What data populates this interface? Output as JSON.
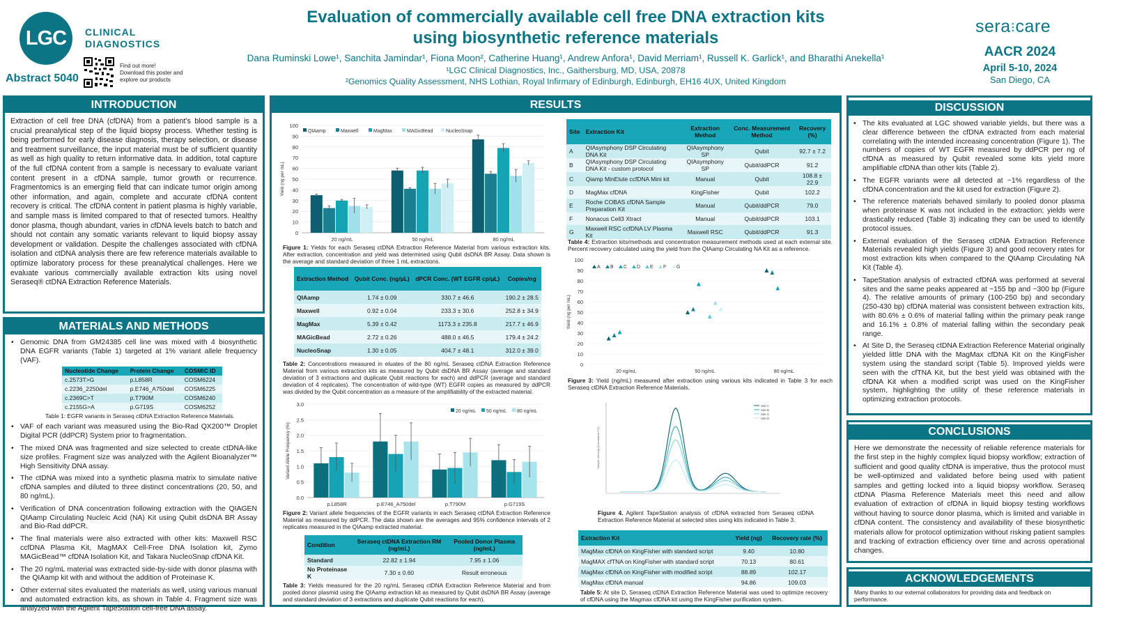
{
  "header": {
    "logo_text": "LGC",
    "org_line1": "CLINICAL",
    "org_line2": "DIAGNOSTICS",
    "abstract": "Abstract 5040",
    "qr_text": [
      "Find out more!",
      "Download this poster and",
      "explore our products"
    ],
    "title1": "Evaluation of commercially available cell free DNA extraction kits",
    "title2": "using biosynthetic reference materials",
    "authors": "Dana Ruminski Lowe¹, Sanchita Jamindar¹, Fiona Moon², Catherine Huang¹, Andrew Anfora¹, David Merriam¹, Russell K. Garlick¹, and Bharathi Anekella¹",
    "aff1": "¹LGC Clinical Diagnostics, Inc., Gaithersburg, MD, USA, 20878",
    "aff2": "²Genomics Quality Assessment, NHS Lothian, Royal Infirmary of Edinburgh, Edinburgh, EH16 4UX, United Kingdom",
    "brand_left": "sera",
    "brand_right": "care",
    "conf": "AACR 2024",
    "dates": "April 5-10, 2024",
    "city": "San Diego, CA"
  },
  "intro": {
    "title": "INTRODUCTION",
    "text": "Extraction of cell free DNA (cfDNA) from a patient’s blood sample is a crucial preanalytical step of the liquid biopsy process. Whether testing is being performed for early disease diagnosis, therapy selection, or disease and treatment surveillance, the input material must be of sufficient quantity as well as high quality to return informative data. In addition, total capture of the full cfDNA content from a sample is necessary to evaluate variant content present in a cfDNA sample, tumor growth or recurrence. Fragmentomics is an emerging field that can indicate tumor origin among other information, and again, complete and accurate cfDNA content recovery is critical. The cfDNA content in patient plasma is highly variable, and sample mass is limited compared to that of resected tumors. Healthy donor plasma, though abundant, varies in cfDNA levels batch to batch and should not contain any somatic variants relevant to liquid biopsy assay development or validation. Despite the challenges associated with cfDNA isolation and ctDNA analysis there are few reference materials available to optimize laboratory process for these preanalytical challenges. Here we evaluate various commercially available extraction kits using novel Seraseq® ctDNA Extraction Reference Materials."
  },
  "methods": {
    "title": "MATERIALS AND METHODS",
    "b1": "Genomic DNA from GM24385 cell line was mixed with 4 biosynthetic DNA EGFR variants (Table 1) targeted at 1% variant allele frequency (VAF).",
    "t1_headers": [
      "Nucleotide Change",
      "Protein Change",
      "COSMIC ID"
    ],
    "t1_rows": [
      [
        "c.2573T>G",
        "p.L858R",
        "COSM6224"
      ],
      [
        "c.2236_2250del",
        "p.E746_A750del",
        "COSM6225"
      ],
      [
        "c.2369C>T",
        "p.T790M",
        "COSM6240"
      ],
      [
        "c.2155G>A",
        "p.G719S",
        "COSM6252"
      ]
    ],
    "t1_cap": "Table 1: EGFR variants in Seraseq ctDNA Extraction Reference Materials.",
    "b2": "VAF of each variant was measured using the Bio-Rad QX200™ Droplet Digital PCR (ddPCR) System prior to fragmentation.",
    "b3": "The mixed DNA was fragmented and size selected to create ctDNA-like size profiles. Fragment size was analyzed with the Agilent Bioanalyzer™ High Sensitivity DNA assay.",
    "b4": "The ctDNA was mixed into a synthetic plasma matrix to simulate native cfDNA samples and diluted to three distinct concentrations (20, 50, and 80 ng/mL).",
    "b5": "Verification of DNA concentration following extraction with the QIAGEN QIAamp Circulating Nucleic Acid (NA) Kit using Qubit dsDNA BR Assay and Bio-Rad ddPCR.",
    "b6": "The final materials were also extracted with other kits: Maxwell RSC ccfDNA Plasma Kit, MagMAX Cell-Free DNA Isolation kit, Zymo MAGicBead™ cfDNA Isolation Kit, and Takara NucleoSnap cfDNA Kit.",
    "b7": "The 20 ng/mL material was extracted side-by-side with donor plasma with the QIAamp kit with and without the addition of Proteinase K.",
    "b8": "Other external sites evaluated the materials as well, using various manual and automated extraction kits, as shown in Table 4. Fragment size was analyzed with the Agilent TapeStation cell-free DNA assay."
  },
  "results": {
    "title": "RESULTS",
    "fig1_cap_b": "Figure 1:",
    "fig1_cap": " Yields for each Seraseq ctDNA Extraction Reference Material from various extraction kits. After extraction, concentration and yield was determined using Qubit dsDNA BR Assay. Data shown is the average and standard deviation of three 1 mL extractions.",
    "t2_headers": [
      "Extraction Method",
      "Qubit Conc. (ng/µL)",
      "dPCR Conc. (WT EGFR cp/µL)",
      "Copies/ng"
    ],
    "t2_rows": [
      [
        "QIAamp",
        "1.74 ± 0.09",
        "330.7 ± 46.6",
        "190.2 ± 28.5"
      ],
      [
        "Maxwell",
        "0.92 ± 0.04",
        "233.3 ± 30.6",
        "252.8 ± 34.9"
      ],
      [
        "MagMax",
        "5.39 ± 0.42",
        "1173.3 ± 235.8",
        "217.7 ± 46.9"
      ],
      [
        "MAGicBead",
        "2.72 ± 0.26",
        "488.0 ± 46.5",
        "179.4 ± 24.2"
      ],
      [
        "NucleoSnap",
        "1.30 ± 0.05",
        "404.7 ± 48.1",
        "312.0 ± 39.0"
      ]
    ],
    "t2_cap_b": "Table 2:",
    "t2_cap": " Concentrations measured in eluates of the 80 ng/mL Seraseq ctDNA Extraction Reference Material from various extraction kits as measured by Qubit dsDNA BR Assay (average and standard deviation of 3 extractions and duplicate Qubit reactions for each) and ddPCR (average and standard deviation of 4 replicates). The concentration of wild-type (WT) EGFR copies as measured by ddPCR was divided by the Qubit concentration as a measure of the amplifiability of the extracted material.",
    "fig2_cap_b": "Figure 2:",
    "fig2_cap": " Variant allele frequencies of the EGFR variants in each Seraseq ctDNA Extraction Reference Material as measured by ddPCR. The data shown are the averages and 95% confidence intervals of 2 replicates measured in the QIAamp extracted material.",
    "t3_headers": [
      "Condition",
      "Seraseq ctDNA Extraction RM (ng/mL)",
      "Pooled Donor Plasma (ng/mL)"
    ],
    "t3_rows": [
      [
        "Standard",
        "22.82 ± 1.94",
        "7.95 ± 1.06"
      ],
      [
        "No Proteinase K",
        "7.30 ± 0.60",
        "Result erroneous"
      ]
    ],
    "t3_cap_b": "Table 3:",
    "t3_cap": " Yields measured for the 20 ng/mL Seraseq ctDNA Extraction Reference Material and from pooled donor plasmid using the QIAamp extraction kit as measured by Qubit dsDNA BR Assay (average and standard deviation of 3 extractions and duplicate Qubit reactions for each).",
    "t4_headers": [
      "Site",
      "Extraction Kit",
      "Extraction Method",
      "Conc. Measurement Method",
      "Recovery (%)"
    ],
    "t4_rows": [
      [
        "A",
        "QIAsymphony DSP Circulating DNA Kit",
        "QIAsymphony SP",
        "Qubit",
        "92.7 ± 7.2"
      ],
      [
        "B",
        "QIAsymphony DSP Circulating DNA Kit - custom protocol",
        "QIAsymphony SP",
        "Qubit/ddPCR",
        "91.2"
      ],
      [
        "C",
        "Qiamp MinElute ccfDNA Mini kit",
        "Manual",
        "Qubit",
        "108.8 ± 22.9"
      ],
      [
        "D",
        "MagMax cfDNA",
        "KingFisher",
        "Qubit",
        "102.2"
      ],
      [
        "E",
        "Roche COBAS cfDNA Sample Preparation Kit",
        "Manual",
        "Qubit/ddPCR",
        "79.0"
      ],
      [
        "F",
        "Nonacus Cell3 Xtract",
        "Manual",
        "Qubit/ddPCR",
        "103.1"
      ],
      [
        "G",
        "Maxwell RSC ccfDNA LV Plasma Kit",
        "Maxwell RSC",
        "Qubit/ddPCR",
        "91.3"
      ]
    ],
    "t4_cap_b": "Table 4:",
    "t4_cap": " Extraction kits/methods and concentration measurement methods used at each external site. Percent recovery calculated using the yield from the QIAamp Circulating NA Kit as a reference.",
    "fig3_cap_b": "Figure 3:",
    "fig3_cap": " Yield (ng/mL) measured after extraction using various kits indicated in Table 3 for each Seraseq ctDNA Extraction Reference Materials.",
    "fig4_cap_b": "Figure 4.",
    "fig4_cap": " Agilent TapeStation analysis of cfDNA extracted from Seraseq ctDNA Extraction Reference Material at selected sites using kits indicated in Table 3.",
    "t5_headers": [
      "Extraction Kit",
      "Yield (ng)",
      "Recovery rate (%)"
    ],
    "t5_rows": [
      [
        "MagMax cfDNA on KingFisher with standard script",
        "9.40",
        "10.80"
      ],
      [
        "MagMAX cfTNA on KingFisher with standard script",
        "70.13",
        "80.61"
      ],
      [
        "MagMax cfDNA on KingFisher with modified script",
        "88.89",
        "102.17"
      ],
      [
        "MagMax cfDNA manual",
        "94.86",
        "109.03"
      ]
    ],
    "t5_cap_b": "Table 5:",
    "t5_cap": " At site D, Seraseq ctDNA Extraction Reference Material was used to optimize recovery of cfDNA using the Magmax cfDNA kit using the KingFisher purification system."
  },
  "discussion": {
    "title": "DISCUSSION",
    "items": [
      "The kits evaluated at LGC showed variable yields, but there was a clear difference between the cfDNA extracted from each material correlating with the intended increasing concentration (Figure 1). The numbers of copies of WT EGFR measured by ddPCR per ng of cfDNA as measured by Qubit revealed some kits yield more amplifiable cfDNA than other kits (Table 2).",
      "The EGFR variants were all detected at ~1% regardless of the cfDNA concentration and the kit used for extraction (Figure 2).",
      "The reference materials behaved similarly to pooled donor plasma when proteinase K was not included in the extraction; yields were drastically reduced (Table 3) indicating they can be used to identify protocol issues.",
      "External evaluation of the Seraseq ctDNA Extraction Reference Materials revealed high yields (Figure 3) and good recovery rates for most extraction kits when compared to the QIAamp Circulating NA Kit (Table 4).",
      "TapeStation analysis of extracted cfDNA was performed at several sites and the same peaks appeared at ~155 bp and ~300 bp (Figure 4). The relative amounts of primary (100-250 bp) and secondary (250-430 bp) cfDNA material was consistent between extraction kits, with 80.6% ± 0.6% of material falling within the primary peak range and 16.1% ± 0.8% of material falling within the secondary peak range.",
      "At Site D, the Seraseq ctDNA Extraction Reference Material originally yielded little DNA with the MagMax cfDNA Kit on the KingFisher system using the standard script (Table 5). Improved yields were seen with the cfTNA Kit, but the best yield was obtained with the cfDNA Kit when a modified script was used on the KingFisher system, highlighting the utility of these reference materials in optimizing extraction protocols."
    ]
  },
  "conclusions": {
    "title": "CONCLUSIONS",
    "text": "Here we demonstrate the necessity of reliable reference materials for the first step in the highly complex liquid biopsy workflow; extraction of sufficient and good quality cfDNA is imperative, thus the protocol must be well-optimized and validated before being used with patient samples and getting locked into a liquid biopsy workflow. Seraseq ctDNA Plasma Reference Materials meet this need and allow evaluation of extraction of cfDNA in liquid biopsy testing workflows without having to source donor plasma, which is limited and variable in cfDNA content. The consistency and availability of these biosynthetic materials allow for protocol optimization without risking patient samples and tracking of extraction efficiency over time and across operational changes."
  },
  "ack": {
    "title": "ACKNOWLEDGEMENTS",
    "text": "Many thanks to our external collaborators for providing data and feedback on performance."
  },
  "chart_data": [
    {
      "id": "fig1",
      "type": "bar",
      "ylabel": "Yield (ng per mL)",
      "ylim": [
        0,
        100
      ],
      "yticks": [
        0,
        10,
        20,
        30,
        40,
        50,
        60,
        70,
        80,
        90,
        100
      ],
      "categories": [
        "20 ng/mL",
        "50 ng/mL",
        "80 ng/mL"
      ],
      "series": [
        {
          "name": "QIAamp",
          "color": "#0c5f6e",
          "values": [
            35,
            58,
            87
          ],
          "err": [
            1,
            2,
            4
          ]
        },
        {
          "name": "Maxwell",
          "color": "#1b7f90",
          "values": [
            23,
            41,
            55
          ],
          "err": [
            2,
            1,
            2
          ]
        },
        {
          "name": "MagMax",
          "color": "#16a3b5",
          "values": [
            30,
            58,
            79
          ],
          "err": [
            1,
            3,
            4
          ]
        },
        {
          "name": "MAGicBead",
          "color": "#9fe0ea",
          "values": [
            25,
            41,
            53
          ],
          "err": [
            7,
            5,
            6
          ]
        },
        {
          "name": "NucleoSnap",
          "color": "#cfeff4",
          "values": [
            24,
            46,
            65
          ],
          "err": [
            2,
            4,
            2
          ]
        }
      ]
    },
    {
      "id": "fig2",
      "type": "bar",
      "ylabel": "Variant Allele Frequency (%)",
      "ylim": [
        0,
        3
      ],
      "yticks": [
        "0.0",
        "0.5",
        "1.0",
        "1.5",
        "2.0",
        "2.5",
        "3.0"
      ],
      "categories": [
        "p.L858R",
        "p.E746_A750del",
        "p.T790M",
        "p.G719S"
      ],
      "series": [
        {
          "name": "20 ng/mL",
          "color": "#0c6f7e",
          "values": [
            1.1,
            1.8,
            0.9,
            1.2
          ],
          "err": [
            0.5,
            0.9,
            0.5,
            0.5
          ]
        },
        {
          "name": "50 ng/mL",
          "color": "#16a3b5",
          "values": [
            1.3,
            1.4,
            0.95,
            0.82
          ],
          "err": [
            0.45,
            0.6,
            0.5,
            0.4
          ]
        },
        {
          "name": "80 ng/mL",
          "color": "#a8e4ec",
          "values": [
            0.8,
            1.8,
            1.45,
            1.15
          ],
          "err": [
            0.3,
            0.6,
            0.45,
            0.5
          ]
        }
      ]
    },
    {
      "id": "fig3",
      "type": "scatter",
      "ylabel": "Yield (ng per mL)",
      "ylim": [
        0,
        100
      ],
      "yticks": [
        0,
        10,
        20,
        30,
        40,
        50,
        60,
        70,
        80,
        90,
        100
      ],
      "categories": [
        "20 ng/mL",
        "50 ng/mL",
        "80 ng/mL"
      ],
      "series": [
        {
          "name": "A",
          "color": "#0c5f6e",
          "values": [
            25,
            50,
            90
          ]
        },
        {
          "name": "B",
          "color": "#1b7f90",
          "values": [
            28,
            53,
            88
          ]
        },
        {
          "name": "C",
          "color": "#16a3b5",
          "values": [
            31,
            77,
            73
          ]
        },
        {
          "name": "D",
          "color": "#2fb4c6"
        },
        {
          "name": "E",
          "color": "#5fc8d6",
          "values": [
            null,
            46,
            null
          ]
        },
        {
          "name": "F",
          "color": "#9fe0ea",
          "values": [
            null,
            59,
            null
          ]
        },
        {
          "name": "G",
          "color": "#cfeff4",
          "values": [
            null,
            53,
            null
          ]
        }
      ]
    },
    {
      "id": "fig4",
      "type": "line",
      "title": "TapeStation electropherogram",
      "legend": [
        "Site A",
        "Site B",
        "Site C",
        "Site D"
      ],
      "ylabel": "Sample Intensity [Normalized FU]"
    }
  ]
}
